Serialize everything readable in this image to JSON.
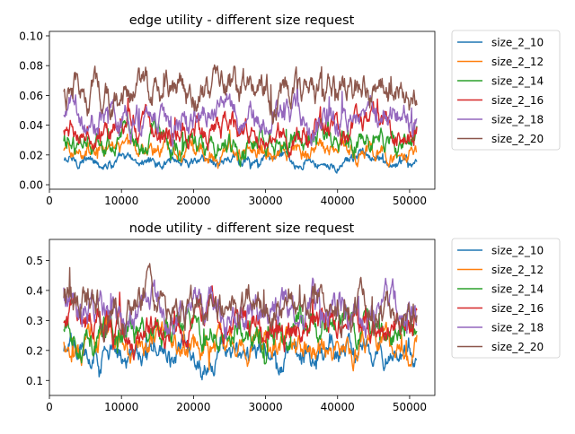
{
  "chart_data": [
    {
      "type": "line",
      "title": "edge utility - different size request",
      "xlabel": "",
      "ylabel": "",
      "xlim": [
        0,
        53500
      ],
      "ylim": [
        -0.003,
        0.103
      ],
      "x_ticks": [
        0,
        10000,
        20000,
        30000,
        40000,
        50000
      ],
      "x_tick_labels": [
        "0",
        "10000",
        "20000",
        "30000",
        "40000",
        "50000"
      ],
      "y_ticks": [
        0.0,
        0.02,
        0.04,
        0.06,
        0.08,
        0.1
      ],
      "y_tick_labels": [
        "0.00",
        "0.02",
        "0.04",
        "0.06",
        "0.08",
        "0.10"
      ],
      "grid": false,
      "legend_position": "outside-right",
      "x_range": [
        2000,
        51000
      ],
      "series": [
        {
          "name": "size_2_10",
          "color": "#1f77b4",
          "mean": 0.016,
          "amplitude": 0.004,
          "min": 0.004,
          "max": 0.03
        },
        {
          "name": "size_2_12",
          "color": "#ff7f0e",
          "mean": 0.022,
          "amplitude": 0.006,
          "min": 0.008,
          "max": 0.04
        },
        {
          "name": "size_2_14",
          "color": "#2ca02c",
          "mean": 0.028,
          "amplitude": 0.008,
          "min": 0.012,
          "max": 0.05
        },
        {
          "name": "size_2_16",
          "color": "#d62728",
          "mean": 0.035,
          "amplitude": 0.009,
          "min": 0.015,
          "max": 0.062
        },
        {
          "name": "size_2_18",
          "color": "#9467bd",
          "mean": 0.045,
          "amplitude": 0.01,
          "min": 0.02,
          "max": 0.078
        },
        {
          "name": "size_2_20",
          "color": "#8c564b",
          "mean": 0.06,
          "amplitude": 0.012,
          "min": 0.025,
          "max": 0.098
        }
      ]
    },
    {
      "type": "line",
      "title": "node utility - different size request",
      "xlabel": "",
      "ylabel": "",
      "xlim": [
        0,
        53500
      ],
      "ylim": [
        0.05,
        0.57
      ],
      "x_ticks": [
        0,
        10000,
        20000,
        30000,
        40000,
        50000
      ],
      "x_tick_labels": [
        "0",
        "10000",
        "20000",
        "30000",
        "40000",
        "50000"
      ],
      "y_ticks": [
        0.1,
        0.2,
        0.3,
        0.4,
        0.5
      ],
      "y_tick_labels": [
        "0.1",
        "0.2",
        "0.3",
        "0.4",
        "0.5"
      ],
      "grid": false,
      "legend_position": "outside-right",
      "x_range": [
        2000,
        51000
      ],
      "series": [
        {
          "name": "size_2_10",
          "color": "#1f77b4",
          "mean": 0.19,
          "amplitude": 0.04,
          "min": 0.085,
          "max": 0.3
        },
        {
          "name": "size_2_12",
          "color": "#ff7f0e",
          "mean": 0.22,
          "amplitude": 0.045,
          "min": 0.08,
          "max": 0.34
        },
        {
          "name": "size_2_14",
          "color": "#2ca02c",
          "mean": 0.26,
          "amplitude": 0.05,
          "min": 0.09,
          "max": 0.4
        },
        {
          "name": "size_2_16",
          "color": "#d62728",
          "mean": 0.28,
          "amplitude": 0.055,
          "min": 0.13,
          "max": 0.46
        },
        {
          "name": "size_2_18",
          "color": "#9467bd",
          "mean": 0.33,
          "amplitude": 0.06,
          "min": 0.18,
          "max": 0.5
        },
        {
          "name": "size_2_20",
          "color": "#8c564b",
          "mean": 0.36,
          "amplitude": 0.06,
          "min": 0.2,
          "max": 0.54
        }
      ]
    }
  ]
}
